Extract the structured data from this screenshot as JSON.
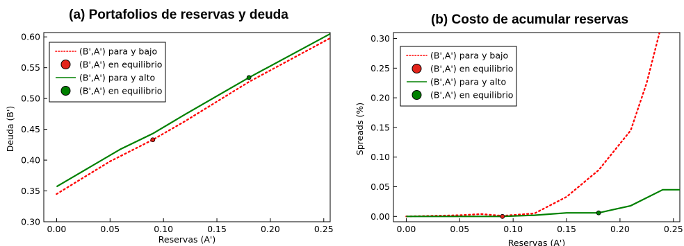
{
  "chart_data": [
    {
      "type": "line",
      "title": "(a) Portafolios de reservas y deuda",
      "xlabel": "Reservas (A')",
      "ylabel": "Deuda (B')",
      "xlim": [
        -0.012,
        0.256
      ],
      "ylim": [
        0.3,
        0.607
      ],
      "xticks": [
        0.0,
        0.05,
        0.1,
        0.15,
        0.2,
        0.25
      ],
      "xtick_labels": [
        "0.00",
        "0.05",
        "0.10",
        "0.15",
        "0.20",
        "0.25"
      ],
      "yticks": [
        0.3,
        0.35,
        0.4,
        0.45,
        0.5,
        0.55,
        0.6
      ],
      "ytick_labels": [
        "0.30",
        "0.35",
        "0.40",
        "0.45",
        "0.50",
        "0.55",
        "0.60"
      ],
      "grid": false,
      "legend_position": "top-left",
      "series": [
        {
          "name": "(B',A') para y bajo",
          "kind": "line",
          "style": "dotted",
          "color": "#ff0000",
          "x": [
            0.0,
            0.05,
            0.09,
            0.12,
            0.18,
            0.256
          ],
          "y": [
            0.345,
            0.398,
            0.433,
            0.463,
            0.527,
            0.598
          ]
        },
        {
          "name": "(B',A') en equilibrio",
          "kind": "point",
          "color": "#e3241b",
          "x": [
            0.09
          ],
          "y": [
            0.433
          ]
        },
        {
          "name": "(B',A') para y alto",
          "kind": "line",
          "style": "solid",
          "color": "#008000",
          "x": [
            0.0,
            0.06,
            0.09,
            0.12,
            0.18,
            0.256
          ],
          "y": [
            0.357,
            0.418,
            0.443,
            0.474,
            0.534,
            0.605
          ]
        },
        {
          "name": "(B',A') en equilibrio",
          "kind": "point",
          "color": "#008000",
          "x": [
            0.18
          ],
          "y": [
            0.534
          ]
        }
      ]
    },
    {
      "type": "line",
      "title": "(b) Costo de acumular reservas",
      "xlabel": "Reservas (A')",
      "ylabel": "Spreads (%)",
      "xlim": [
        -0.012,
        0.256
      ],
      "ylim": [
        -0.009,
        0.31
      ],
      "xticks": [
        0.0,
        0.05,
        0.1,
        0.15,
        0.2,
        0.25
      ],
      "xtick_labels": [
        "0.00",
        "0.05",
        "0.10",
        "0.15",
        "0.20",
        "0.25"
      ],
      "yticks": [
        0.0,
        0.05,
        0.1,
        0.15,
        0.2,
        0.25,
        0.3
      ],
      "ytick_labels": [
        "0.00",
        "0.05",
        "0.10",
        "0.15",
        "0.20",
        "0.25",
        "0.30"
      ],
      "grid": false,
      "legend_position": "top-left",
      "series": [
        {
          "name": "(B',A') para y bajo",
          "kind": "line",
          "style": "dotted",
          "color": "#ff0000",
          "x": [
            0.0,
            0.05,
            0.07,
            0.09,
            0.12,
            0.15,
            0.18,
            0.21,
            0.225,
            0.237
          ],
          "y": [
            0.0,
            0.002,
            0.004,
            0.001,
            0.005,
            0.033,
            0.078,
            0.145,
            0.225,
            0.31
          ]
        },
        {
          "name": "(B',A') en equilibrio",
          "kind": "point",
          "color": "#e3241b",
          "x": [
            0.09
          ],
          "y": [
            0.0
          ]
        },
        {
          "name": "(B',A') para y alto",
          "kind": "line",
          "style": "solid",
          "color": "#008000",
          "x": [
            0.0,
            0.09,
            0.12,
            0.15,
            0.18,
            0.21,
            0.24,
            0.256
          ],
          "y": [
            0.0,
            0.0,
            0.002,
            0.006,
            0.006,
            0.018,
            0.045,
            0.045
          ]
        },
        {
          "name": "(B',A') en equilibrio",
          "kind": "point",
          "color": "#008000",
          "x": [
            0.18
          ],
          "y": [
            0.006
          ]
        }
      ]
    }
  ]
}
